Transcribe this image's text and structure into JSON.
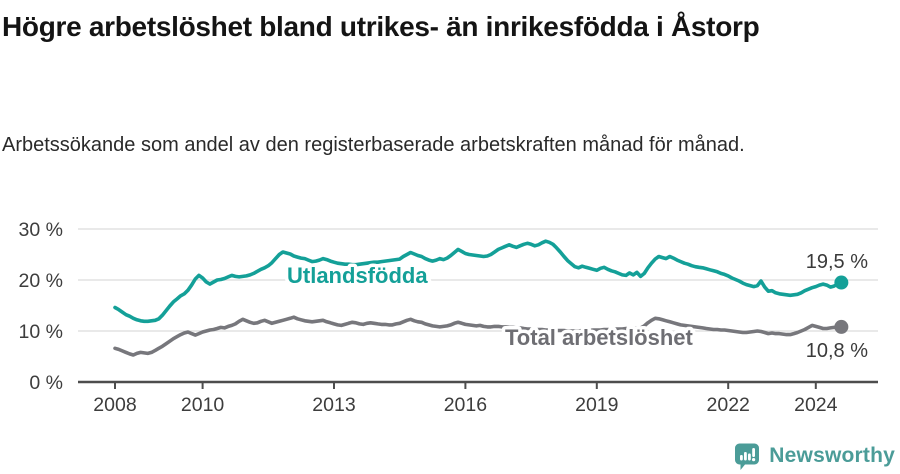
{
  "header": {
    "title": "Högre arbetslöshet bland utrikes- än inrikesfödda i Åstorp",
    "subtitle": "Arbetssökande som andel av den registerbaserade arbetskraften månad för månad."
  },
  "footer": {
    "brand": "Newsworthy"
  },
  "chart_data": {
    "type": "line",
    "title": "Högre arbetslöshet bland utrikes- än inrikesfödda i Åstorp",
    "subtitle": "Arbetssökande som andel av den registerbaserade arbetskraften månad för månad.",
    "x_unit": "month",
    "x_start_year": 2008,
    "x_end": "2024-08",
    "ylim": [
      0,
      32
    ],
    "grid": "horizontal",
    "legend_position": "inline-labels",
    "y_ticks": [
      {
        "value": 30,
        "label": "30 %"
      },
      {
        "value": 20,
        "label": "20 %"
      },
      {
        "value": 10,
        "label": "10 %"
      },
      {
        "value": 0,
        "label": "0 %"
      }
    ],
    "x_ticks": [
      {
        "year": 2008,
        "label": "2008"
      },
      {
        "year": 2010,
        "label": "2010"
      },
      {
        "year": 2013,
        "label": "2013"
      },
      {
        "year": 2016,
        "label": "2016"
      },
      {
        "year": 2019,
        "label": "2019"
      },
      {
        "year": 2022,
        "label": "2022"
      },
      {
        "year": 2024,
        "label": "2024"
      }
    ],
    "colors": {
      "grid": "#dcdcdc",
      "axis": "#4d4d4d",
      "tick_text": "#3d3d3d",
      "value_label": "#3a3a3a"
    },
    "series": [
      {
        "id": "utlandsfodda",
        "name": "Utlandsfödda",
        "color": "#14a098",
        "label_color": "#14a098",
        "end_label": "19,5 %",
        "end_value": 19.5,
        "values": [
          14.6,
          14.2,
          13.7,
          13.2,
          12.9,
          12.5,
          12.2,
          12.0,
          11.9,
          11.9,
          12.0,
          12.1,
          12.4,
          13.1,
          14.0,
          14.9,
          15.7,
          16.3,
          16.9,
          17.3,
          18.0,
          19.0,
          20.2,
          20.9,
          20.4,
          19.6,
          19.2,
          19.6,
          20.0,
          20.1,
          20.3,
          20.6,
          20.9,
          20.7,
          20.6,
          20.7,
          20.8,
          21.0,
          21.3,
          21.7,
          22.1,
          22.4,
          22.8,
          23.4,
          24.2,
          25.0,
          25.5,
          25.3,
          25.1,
          24.7,
          24.5,
          24.3,
          24.2,
          23.9,
          23.6,
          23.7,
          23.9,
          24.2,
          24.0,
          23.7,
          23.5,
          23.3,
          23.2,
          23.1,
          23.1,
          23.0,
          23.0,
          23.1,
          23.2,
          23.3,
          23.4,
          23.5,
          23.5,
          23.6,
          23.7,
          23.8,
          23.9,
          24.0,
          24.1,
          24.6,
          25.0,
          25.4,
          25.1,
          24.8,
          24.6,
          24.2,
          23.9,
          23.7,
          23.9,
          24.2,
          24.0,
          24.3,
          24.8,
          25.4,
          26.0,
          25.6,
          25.2,
          25.0,
          24.9,
          24.8,
          24.7,
          24.6,
          24.7,
          25.0,
          25.5,
          26.0,
          26.3,
          26.6,
          26.9,
          26.6,
          26.4,
          26.7,
          27.0,
          27.2,
          27.0,
          26.7,
          26.9,
          27.3,
          27.6,
          27.4,
          27.0,
          26.3,
          25.5,
          24.6,
          23.8,
          23.2,
          22.6,
          22.4,
          22.7,
          22.5,
          22.3,
          22.1,
          21.9,
          22.3,
          22.5,
          22.1,
          21.8,
          21.6,
          21.3,
          21.0,
          20.9,
          21.4,
          21.0,
          21.5,
          20.7,
          21.3,
          22.4,
          23.3,
          24.1,
          24.6,
          24.4,
          24.2,
          24.6,
          24.3,
          23.9,
          23.6,
          23.3,
          23.1,
          22.8,
          22.6,
          22.5,
          22.4,
          22.2,
          22.0,
          21.8,
          21.6,
          21.3,
          21.1,
          20.8,
          20.4,
          20.1,
          19.8,
          19.4,
          19.1,
          18.9,
          18.7,
          18.9,
          19.8,
          18.6,
          17.8,
          17.9,
          17.5,
          17.3,
          17.2,
          17.1,
          17.0,
          17.1,
          17.2,
          17.5,
          17.9,
          18.2,
          18.5,
          18.7,
          19.0,
          19.2,
          19.0,
          18.6,
          18.8,
          19.2,
          19.5
        ]
      },
      {
        "id": "total",
        "name": "Total arbetslöshet",
        "color": "#77777c",
        "label_color": "#6e6e73",
        "end_label": "10,8 %",
        "end_value": 10.8,
        "values": [
          6.6,
          6.4,
          6.1,
          5.8,
          5.5,
          5.3,
          5.6,
          5.8,
          5.7,
          5.6,
          5.8,
          6.2,
          6.6,
          7.0,
          7.5,
          8.0,
          8.5,
          8.9,
          9.3,
          9.6,
          9.8,
          9.5,
          9.2,
          9.5,
          9.8,
          10.0,
          10.2,
          10.3,
          10.5,
          10.7,
          10.6,
          10.9,
          11.1,
          11.4,
          11.9,
          12.3,
          12.0,
          11.7,
          11.5,
          11.6,
          11.9,
          12.1,
          11.8,
          11.5,
          11.7,
          11.9,
          12.1,
          12.3,
          12.5,
          12.7,
          12.4,
          12.2,
          12.0,
          11.9,
          11.8,
          11.9,
          12.0,
          12.1,
          11.8,
          11.6,
          11.4,
          11.2,
          11.1,
          11.3,
          11.5,
          11.7,
          11.6,
          11.4,
          11.3,
          11.5,
          11.6,
          11.5,
          11.4,
          11.3,
          11.3,
          11.2,
          11.2,
          11.4,
          11.5,
          11.8,
          12.1,
          12.3,
          12.0,
          11.8,
          11.7,
          11.4,
          11.2,
          11.0,
          10.9,
          10.8,
          10.9,
          11.0,
          11.2,
          11.5,
          11.7,
          11.5,
          11.3,
          11.2,
          11.1,
          11.0,
          11.1,
          10.9,
          10.8,
          10.8,
          10.9,
          10.9,
          10.8,
          10.8,
          10.7,
          10.7,
          10.6,
          10.6,
          10.5,
          10.4,
          10.4,
          10.3,
          10.3,
          10.3,
          10.2,
          10.2,
          10.2,
          10.1,
          10.1,
          10.1,
          10.0,
          10.0,
          10.0,
          10.0,
          10.1,
          10.1,
          10.1,
          10.2,
          10.2,
          10.2,
          10.3,
          10.3,
          10.3,
          10.4,
          10.4,
          10.4,
          10.5,
          10.5,
          10.5,
          10.6,
          10.6,
          11.0,
          11.6,
          12.1,
          12.5,
          12.4,
          12.2,
          12.0,
          11.8,
          11.6,
          11.4,
          11.2,
          11.1,
          11.0,
          10.9,
          10.8,
          10.7,
          10.6,
          10.5,
          10.4,
          10.3,
          10.3,
          10.2,
          10.2,
          10.1,
          10.0,
          9.9,
          9.8,
          9.7,
          9.7,
          9.8,
          9.9,
          10.0,
          9.9,
          9.7,
          9.5,
          9.6,
          9.5,
          9.5,
          9.4,
          9.3,
          9.3,
          9.5,
          9.7,
          10.0,
          10.3,
          10.7,
          11.1,
          10.9,
          10.7,
          10.5,
          10.5,
          10.6,
          10.7,
          10.7,
          10.8
        ]
      }
    ]
  }
}
